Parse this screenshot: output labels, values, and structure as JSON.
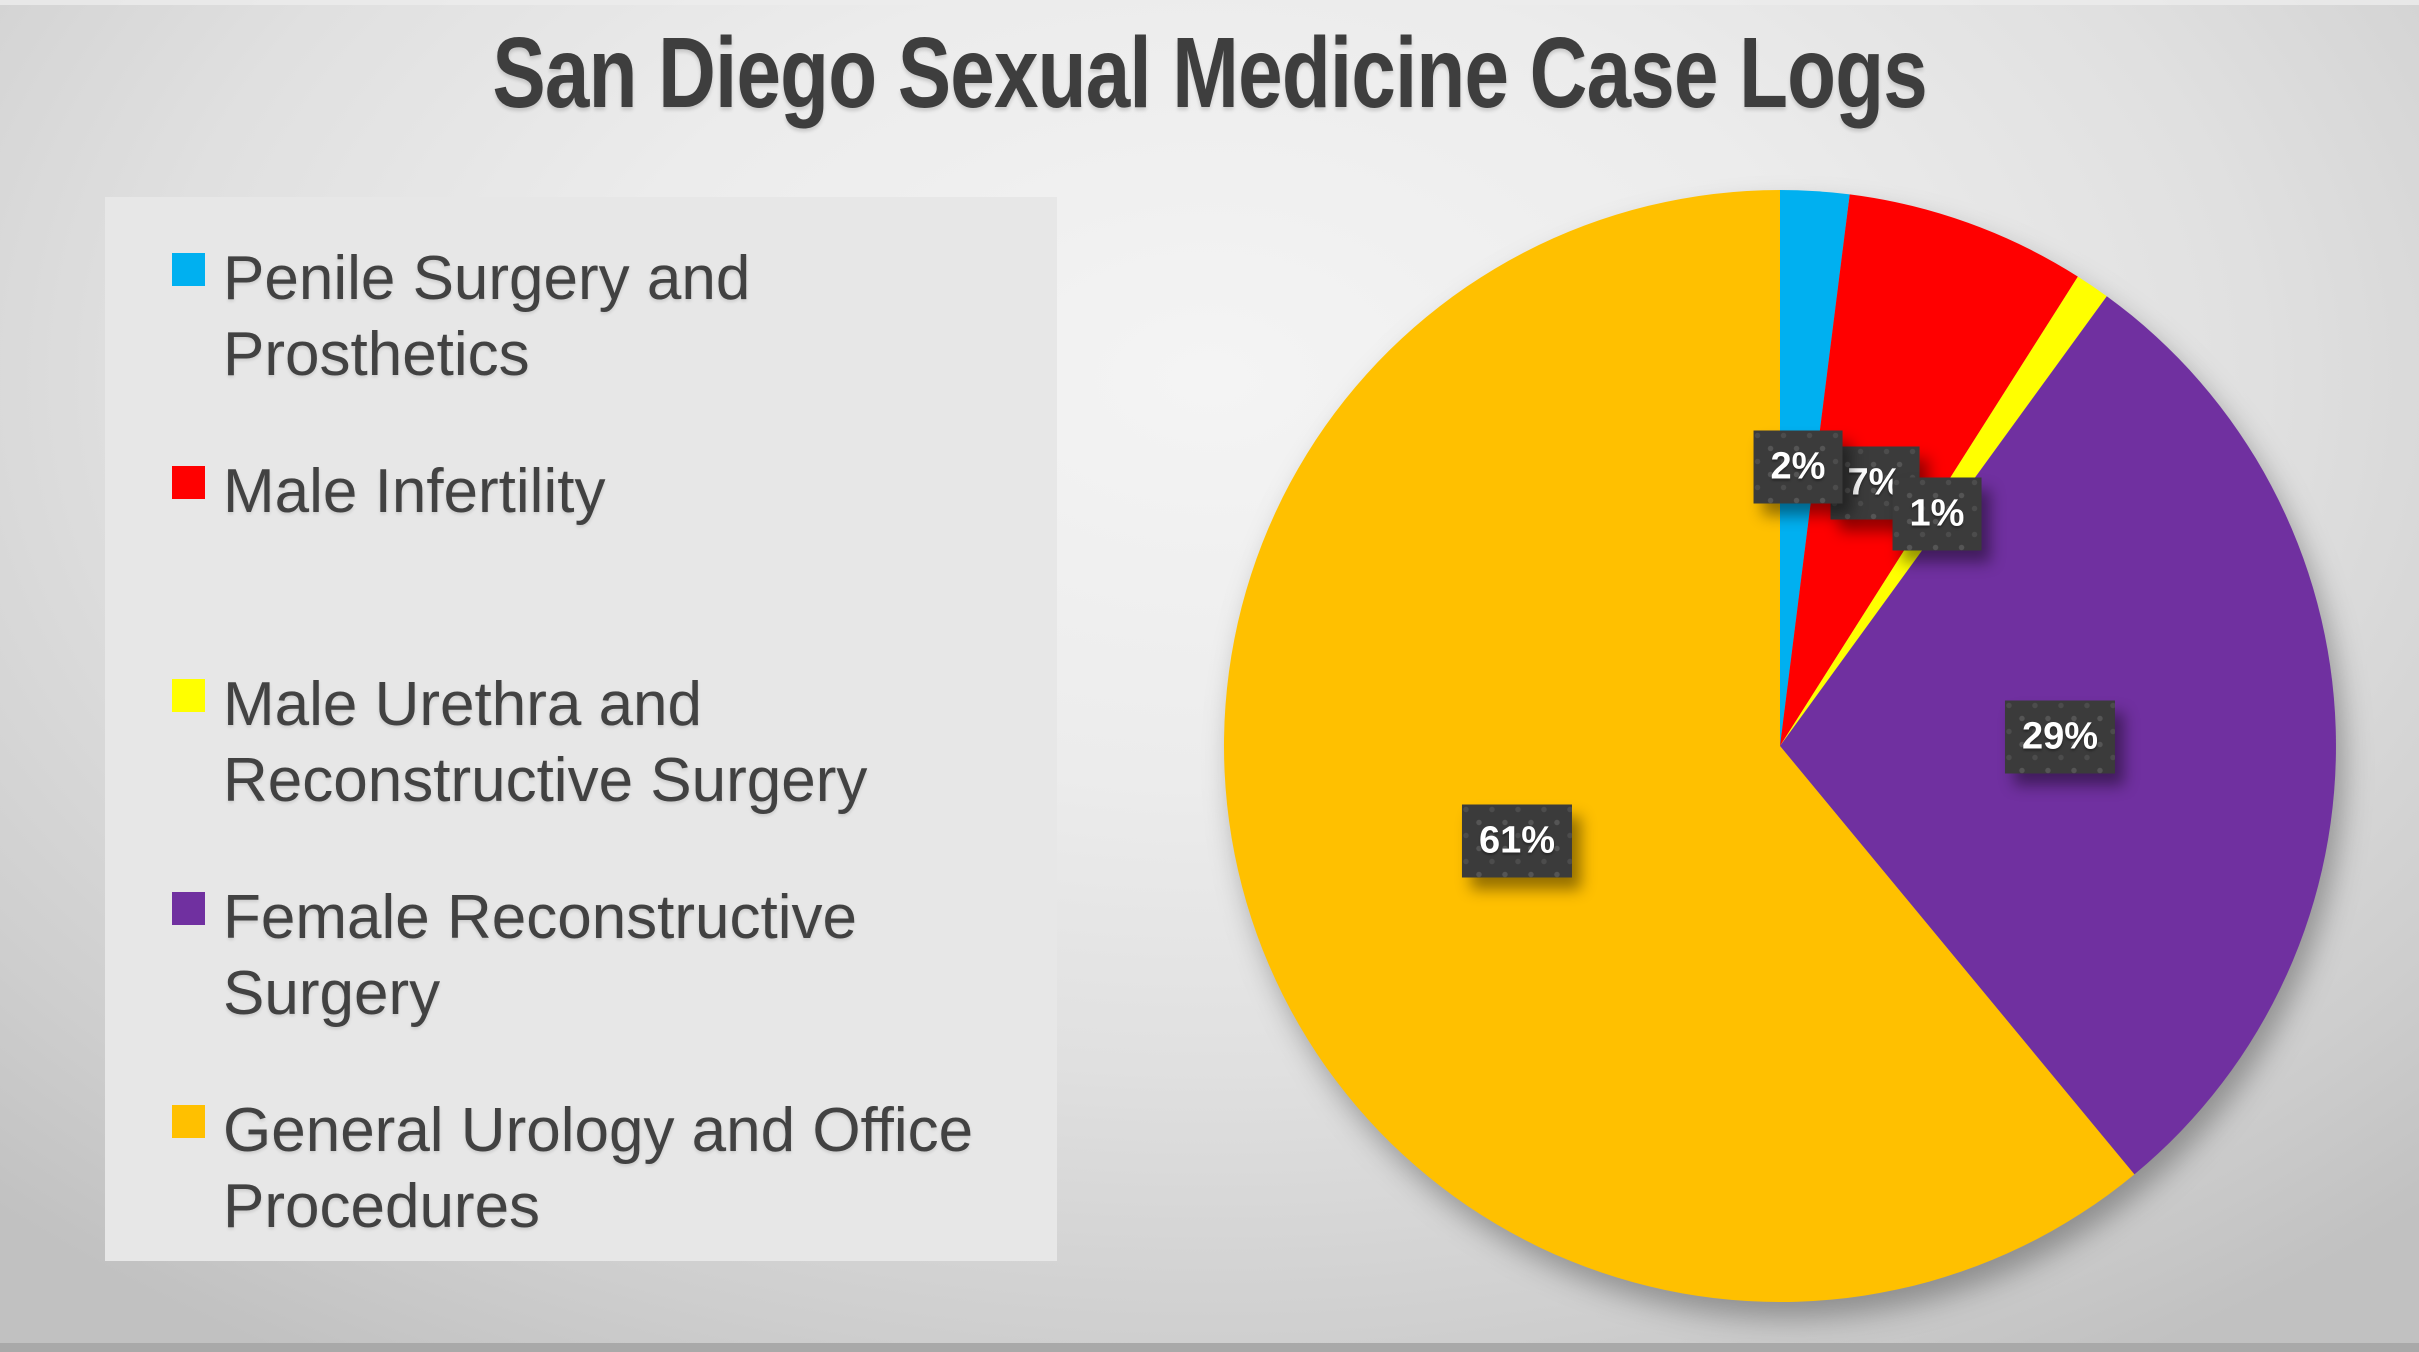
{
  "title": "San Diego Sexual Medicine Case Logs",
  "colors": {
    "title_text": "#3E3E3E",
    "legend_panel_bg": "#E7E7E7",
    "legend_text": "#424242",
    "data_label_bg": "#3B3B3B",
    "data_label_text": "#FFFFFF",
    "background_edge": "#C1C1C1",
    "background_center": "#F4F4F4"
  },
  "chart_data": {
    "type": "pie",
    "title": "San Diego Sexual Medicine Case Logs",
    "legend_position": "left",
    "start_angle_deg": 0,
    "direction": "clockwise",
    "total": 100,
    "series": [
      {
        "name": "Penile Surgery and Prosthetics",
        "legend_label": "Penile Surgery and\nProsthetics",
        "value": 2,
        "data_label": "2%",
        "color": "#00B0F0"
      },
      {
        "name": "Male Infertility",
        "legend_label": "Male Infertility",
        "value": 7,
        "data_label": "7%",
        "color": "#FF0000"
      },
      {
        "name": "Male Urethra and Reconstructive Surgery",
        "legend_label": "Male Urethra and\nReconstructive Surgery",
        "value": 1,
        "data_label": "1%",
        "color": "#FFFF00"
      },
      {
        "name": "Female Reconstructive Surgery",
        "legend_label": "Female Reconstructive\nSurgery",
        "value": 29,
        "data_label": "29%",
        "color": "#7030A0"
      },
      {
        "name": "General Urology and Office Procedures",
        "legend_label": "General Urology and Office\nProcedures",
        "value": 61,
        "data_label": "61%",
        "color": "#FFC000"
      }
    ]
  }
}
